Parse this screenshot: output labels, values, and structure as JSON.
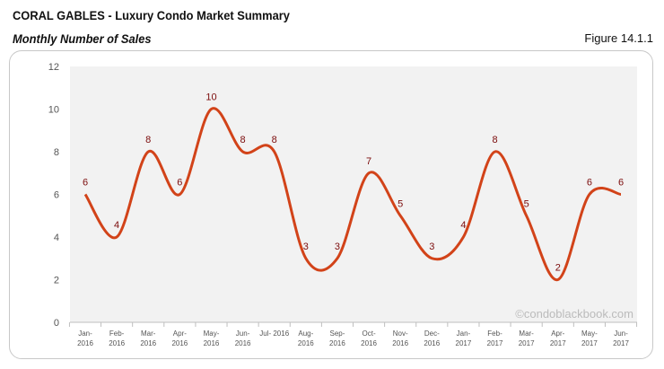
{
  "header": {
    "title": "CORAL GABLES - Luxury Condo Market Summary",
    "subtitle": "Monthly Number of Sales",
    "figure": "Figure 14.1.1"
  },
  "watermark": "©condoblackbook.com",
  "chart_data": {
    "type": "line",
    "smooth": true,
    "title": "Monthly Number of Sales",
    "categories": [
      [
        "Jan-",
        "2016"
      ],
      [
        "Feb-",
        "2016"
      ],
      [
        "Mar-",
        "2016"
      ],
      [
        "Apr-",
        "2016"
      ],
      [
        "May-",
        "2016"
      ],
      [
        "Jun-",
        "2016"
      ],
      [
        "Jul- 2016",
        ""
      ],
      [
        "Aug-",
        "2016"
      ],
      [
        "Sep-",
        "2016"
      ],
      [
        "Oct-",
        "2016"
      ],
      [
        "Nov-",
        "2016"
      ],
      [
        "Dec-",
        "2016"
      ],
      [
        "Jan-",
        "2017"
      ],
      [
        "Feb-",
        "2017"
      ],
      [
        "Mar-",
        "2017"
      ],
      [
        "Apr-",
        "2017"
      ],
      [
        "May-",
        "2017"
      ],
      [
        "Jun-",
        "2017"
      ]
    ],
    "values": [
      6,
      4,
      8,
      6,
      10,
      8,
      8,
      3,
      3,
      7,
      5,
      3,
      4,
      8,
      5,
      2,
      6,
      6
    ],
    "ylim": [
      0,
      12
    ],
    "yticks": [
      0,
      2,
      4,
      6,
      8,
      10,
      12
    ],
    "data_labels": true,
    "grid": false,
    "colors": {
      "line": "#d24319",
      "label": "#7b0b0b",
      "plot_bg": "#f2f2f2"
    }
  }
}
